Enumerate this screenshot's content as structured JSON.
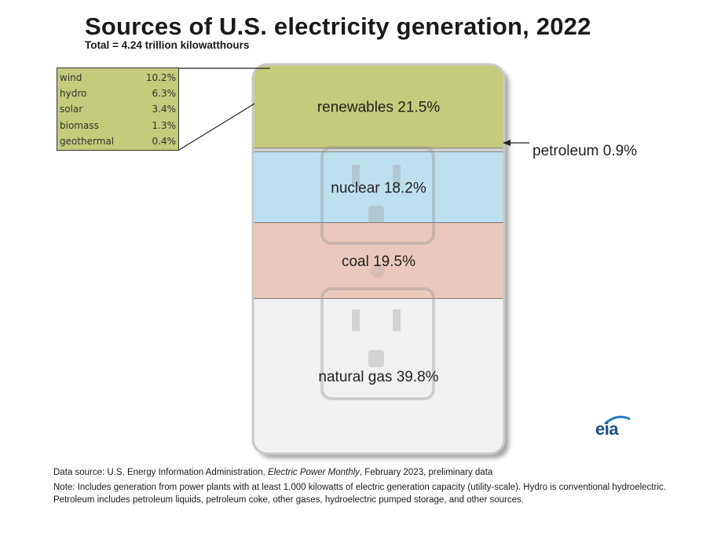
{
  "title": "Sources of U.S. electricity generation, 2022",
  "subtitle": "Total = 4.24 trillion kilowatthours",
  "chart_data": {
    "type": "stacked-bar",
    "title": "Sources of U.S. electricity generation, 2022",
    "total": "4.24 trillion kilowatthours",
    "unit": "percent",
    "segments": [
      {
        "name": "renewables",
        "label": "renewables 21.5%",
        "value": 21.5,
        "color": "#c4cb7a"
      },
      {
        "name": "petroleum",
        "label": "petroleum 0.9%",
        "value": 0.9,
        "color": "#d8d8d8"
      },
      {
        "name": "nuclear",
        "label": "nuclear 18.2%",
        "value": 18.2,
        "color": "#bde0ef"
      },
      {
        "name": "coal",
        "label": "coal 19.5%",
        "value": 19.5,
        "color": "#ecc8bc"
      },
      {
        "name": "natural gas",
        "label": "natural gas 39.8%",
        "value": 39.8,
        "color": "#f1f1f1"
      }
    ],
    "renewables_breakdown": [
      {
        "name": "wind",
        "value": "10.2%"
      },
      {
        "name": "hydro",
        "value": "6.3%"
      },
      {
        "name": "solar",
        "value": "3.4%"
      },
      {
        "name": "biomass",
        "value": "1.3%"
      },
      {
        "name": "geothermal",
        "value": "0.4%"
      }
    ]
  },
  "source_prefix": "Data source: U.S. Energy Information Administration, ",
  "source_publication": "Electric Power Monthly",
  "source_suffix": ", February 2023, preliminary data",
  "note": "Note: Includes generation from power plants with at least 1,000 kilowatts of electric generation capacity (utility-scale). Hydro is conventional hydroelectric. Petroleum includes petroleum liquids, petroleum coke, other gases, hydroelectric pumped storage, and other sources.",
  "logo_text": "eia"
}
